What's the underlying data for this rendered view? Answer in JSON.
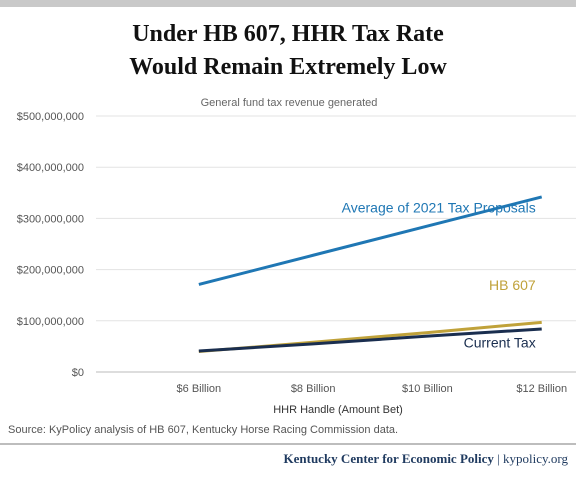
{
  "title_line1": "Under HB 607, HHR Tax Rate",
  "title_line2": "Would Remain Extremely Low",
  "source": "Source: KyPolicy  analysis of HB 607, Kentucky Horse Racing Commission  data.",
  "footer": {
    "org": "Kentucky Center for Economic Policy",
    "separator": " | ",
    "site": "kypolicy.org"
  },
  "chart_data": {
    "type": "line",
    "subtitle": "General fund tax revenue generated",
    "xlabel": "HHR Handle (Amount Bet)",
    "ylabel": "",
    "x": [
      6,
      8,
      10,
      12
    ],
    "x_ticks": [
      6,
      8,
      10,
      12
    ],
    "x_tick_labels": [
      "$6 Billion",
      "$8 Billion",
      "$10 Billion",
      "$12 Billion"
    ],
    "xlim": [
      4.2,
      12.6
    ],
    "ylim": [
      0,
      500000000
    ],
    "y_ticks": [
      0,
      100000000,
      200000000,
      300000000,
      400000000,
      500000000
    ],
    "y_tick_labels": [
      "$0",
      "$100,000,000",
      "$200,000,000",
      "$300,000,000",
      "$400,000,000",
      "$500,000,000"
    ],
    "grid": true,
    "series": [
      {
        "name": "Average of 2021 Tax Proposals",
        "color": "#1f77b4",
        "values": [
          171000000,
          228000000,
          285000000,
          342000000
        ]
      },
      {
        "name": "HB 607",
        "color": "#c0a23a",
        "values": [
          40000000,
          58000000,
          77000000,
          97000000
        ]
      },
      {
        "name": "Current Tax",
        "color": "#1a2e4f",
        "values": [
          41000000,
          55000000,
          70000000,
          84000000
        ]
      }
    ]
  }
}
